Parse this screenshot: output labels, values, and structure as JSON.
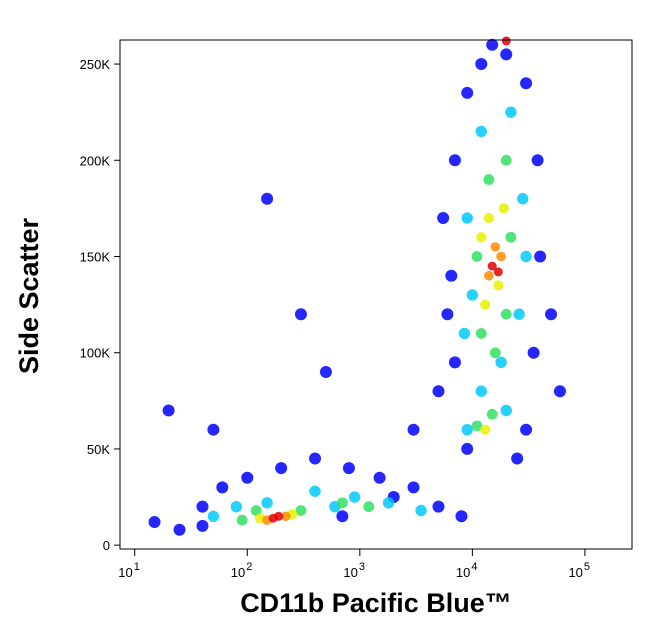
{
  "chart_data": {
    "type": "scatter",
    "xlabel": "CD11b Pacific Blue™",
    "ylabel": "Side Scatter",
    "xscale": "log",
    "xlim": [
      7.4,
      262000
    ],
    "ylim": [
      -2000,
      262500
    ],
    "xticks": [
      {
        "value": 10,
        "label": "10",
        "exponent": "1"
      },
      {
        "value": 100,
        "label": "10",
        "exponent": "2"
      },
      {
        "value": 1000,
        "label": "10",
        "exponent": "3"
      },
      {
        "value": 10000,
        "label": "10",
        "exponent": "4"
      },
      {
        "value": 100000,
        "label": "10",
        "exponent": "5"
      }
    ],
    "yticks": [
      0,
      {
        "value": 50000,
        "label": "50K"
      },
      {
        "value": 100000,
        "label": "100K"
      },
      {
        "value": 150000,
        "label": "150K"
      },
      {
        "value": 200000,
        "label": "200K"
      },
      {
        "value": 250000,
        "label": "250K"
      }
    ],
    "series": [
      {
        "color": "#0000ff",
        "x": [
          15,
          25,
          40,
          60,
          100,
          200,
          400,
          800,
          1500,
          3000,
          5000,
          8000,
          20,
          50,
          300,
          5000,
          6000,
          5500,
          7000,
          9000,
          12000,
          20000,
          30000,
          38000,
          40000,
          35000,
          30000,
          25000,
          9000,
          7000,
          6500,
          15000,
          50000,
          3000,
          150,
          500,
          60000,
          2000,
          40,
          700
        ],
        "y": [
          12000,
          8000,
          20000,
          30000,
          35000,
          40000,
          45000,
          40000,
          35000,
          30000,
          20000,
          15000,
          70000,
          60000,
          120000,
          80000,
          120000,
          170000,
          200000,
          235000,
          250000,
          255000,
          240000,
          200000,
          150000,
          100000,
          60000,
          45000,
          50000,
          95000,
          140000,
          260000,
          120000,
          60000,
          180000,
          90000,
          80000,
          25000,
          10000,
          15000
        ]
      },
      {
        "color": "#00c8ff",
        "x": [
          50,
          80,
          150,
          400,
          900,
          1800,
          3500,
          9000,
          20000,
          12000,
          8500,
          9000,
          12000,
          22000,
          28000,
          26000,
          10000,
          18000,
          30000,
          600
        ],
        "y": [
          15000,
          20000,
          22000,
          28000,
          25000,
          22000,
          18000,
          60000,
          70000,
          80000,
          110000,
          170000,
          215000,
          225000,
          180000,
          120000,
          130000,
          95000,
          150000,
          20000
        ]
      },
      {
        "color": "#30e060",
        "x": [
          90,
          120,
          300,
          700,
          1200,
          11000,
          15000,
          12000,
          11000,
          14000,
          20000,
          22000,
          20000,
          16000
        ],
        "y": [
          13000,
          18000,
          18000,
          22000,
          20000,
          62000,
          68000,
          110000,
          150000,
          190000,
          200000,
          160000,
          120000,
          100000
        ]
      },
      {
        "color": "#e8f000",
        "x": [
          130,
          250,
          13000,
          14000,
          19000,
          17000,
          12000,
          13000
        ],
        "y": [
          14000,
          16000,
          125000,
          170000,
          175000,
          135000,
          160000,
          60000
        ]
      },
      {
        "color": "#ff8c00",
        "x": [
          150,
          220,
          14000,
          16000,
          18000
        ],
        "y": [
          13000,
          15000,
          140000,
          155000,
          150000
        ]
      },
      {
        "color": "#e00000",
        "x": [
          170,
          190,
          15000,
          17000,
          20000
        ],
        "y": [
          14000,
          15000,
          145000,
          142000,
          262000
        ]
      }
    ]
  }
}
